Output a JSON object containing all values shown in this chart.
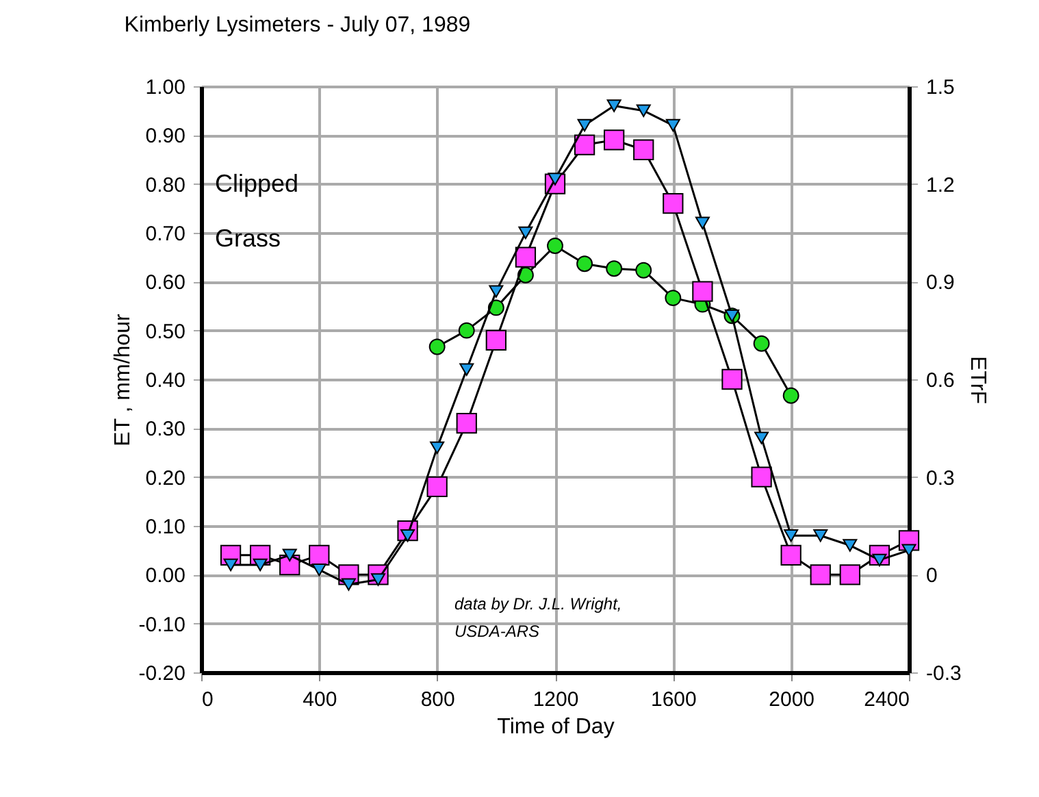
{
  "chart_data": {
    "type": "line",
    "title": "Kimberly Lysimeters - July 07, 1989",
    "xlabel": "Time of Day",
    "ylabel": "ET , mm/hour",
    "y2label": "ETrF",
    "annotations": [
      "Clipped",
      "Grass",
      "data by Dr. J.L. Wright,",
      "USDA-ARS"
    ],
    "x": [
      100,
      200,
      300,
      400,
      500,
      600,
      700,
      800,
      900,
      1000,
      1100,
      1200,
      1300,
      1400,
      1500,
      1600,
      1700,
      1800,
      1900,
      2000,
      2100,
      2200,
      2300,
      2400
    ],
    "series": [
      {
        "color": "#ff44ff",
        "marker": "square",
        "values": [
          0.04,
          0.04,
          0.02,
          0.04,
          0.0,
          0.0,
          0.09,
          0.18,
          0.31,
          0.48,
          0.65,
          0.8,
          0.88,
          0.89,
          0.87,
          0.76,
          0.58,
          0.4,
          0.2,
          0.04,
          0.0,
          0.0,
          0.04,
          0.07
        ]
      },
      {
        "color": "#1e9be8",
        "marker": "triangle",
        "values": [
          0.02,
          0.02,
          0.04,
          0.01,
          -0.02,
          -0.01,
          0.08,
          0.26,
          0.42,
          0.58,
          0.7,
          0.81,
          0.92,
          0.96,
          0.95,
          0.92,
          0.72,
          0.53,
          0.28,
          0.08,
          0.08,
          0.06,
          0.03,
          0.05
        ]
      },
      {
        "color": "#22dd22",
        "marker": "circle",
        "axis": "y2",
        "x": [
          800,
          900,
          1000,
          1100,
          1200,
          1300,
          1400,
          1500,
          1600,
          1700,
          1800,
          1900,
          2000
        ],
        "values": [
          0.7,
          0.75,
          0.82,
          0.92,
          1.01,
          0.955,
          0.94,
          0.935,
          0.85,
          0.83,
          0.795,
          0.71,
          0.55
        ]
      }
    ],
    "xlim": [
      0,
      2400
    ],
    "xticks": [
      0,
      400,
      800,
      1200,
      1600,
      2000,
      2400
    ],
    "ylim": [
      -0.2,
      1.0
    ],
    "yticks": [
      {
        "value": -0.2,
        "label": "-0.20"
      },
      {
        "value": -0.1,
        "label": "-0.10"
      },
      {
        "value": 0,
        "label": "0.00"
      },
      {
        "value": 0.1,
        "label": "0.10"
      },
      {
        "value": 0.2,
        "label": "0.20"
      },
      {
        "value": 0.3,
        "label": "0.30"
      },
      {
        "value": 0.4,
        "label": "0.40"
      },
      {
        "value": 0.5,
        "label": "0.50"
      },
      {
        "value": 0.6,
        "label": "0.60"
      },
      {
        "value": 0.7,
        "label": "0.70"
      },
      {
        "value": 0.8,
        "label": "0.80"
      },
      {
        "value": 0.9,
        "label": "0.90"
      },
      {
        "value": 1.0,
        "label": "1.00"
      }
    ],
    "y2lim": [
      -0.3,
      1.5
    ],
    "y2ticks": [
      -0.3,
      0,
      0.3,
      0.6,
      0.9,
      1.2,
      1.5
    ],
    "grid": true,
    "line_style": "solid"
  }
}
